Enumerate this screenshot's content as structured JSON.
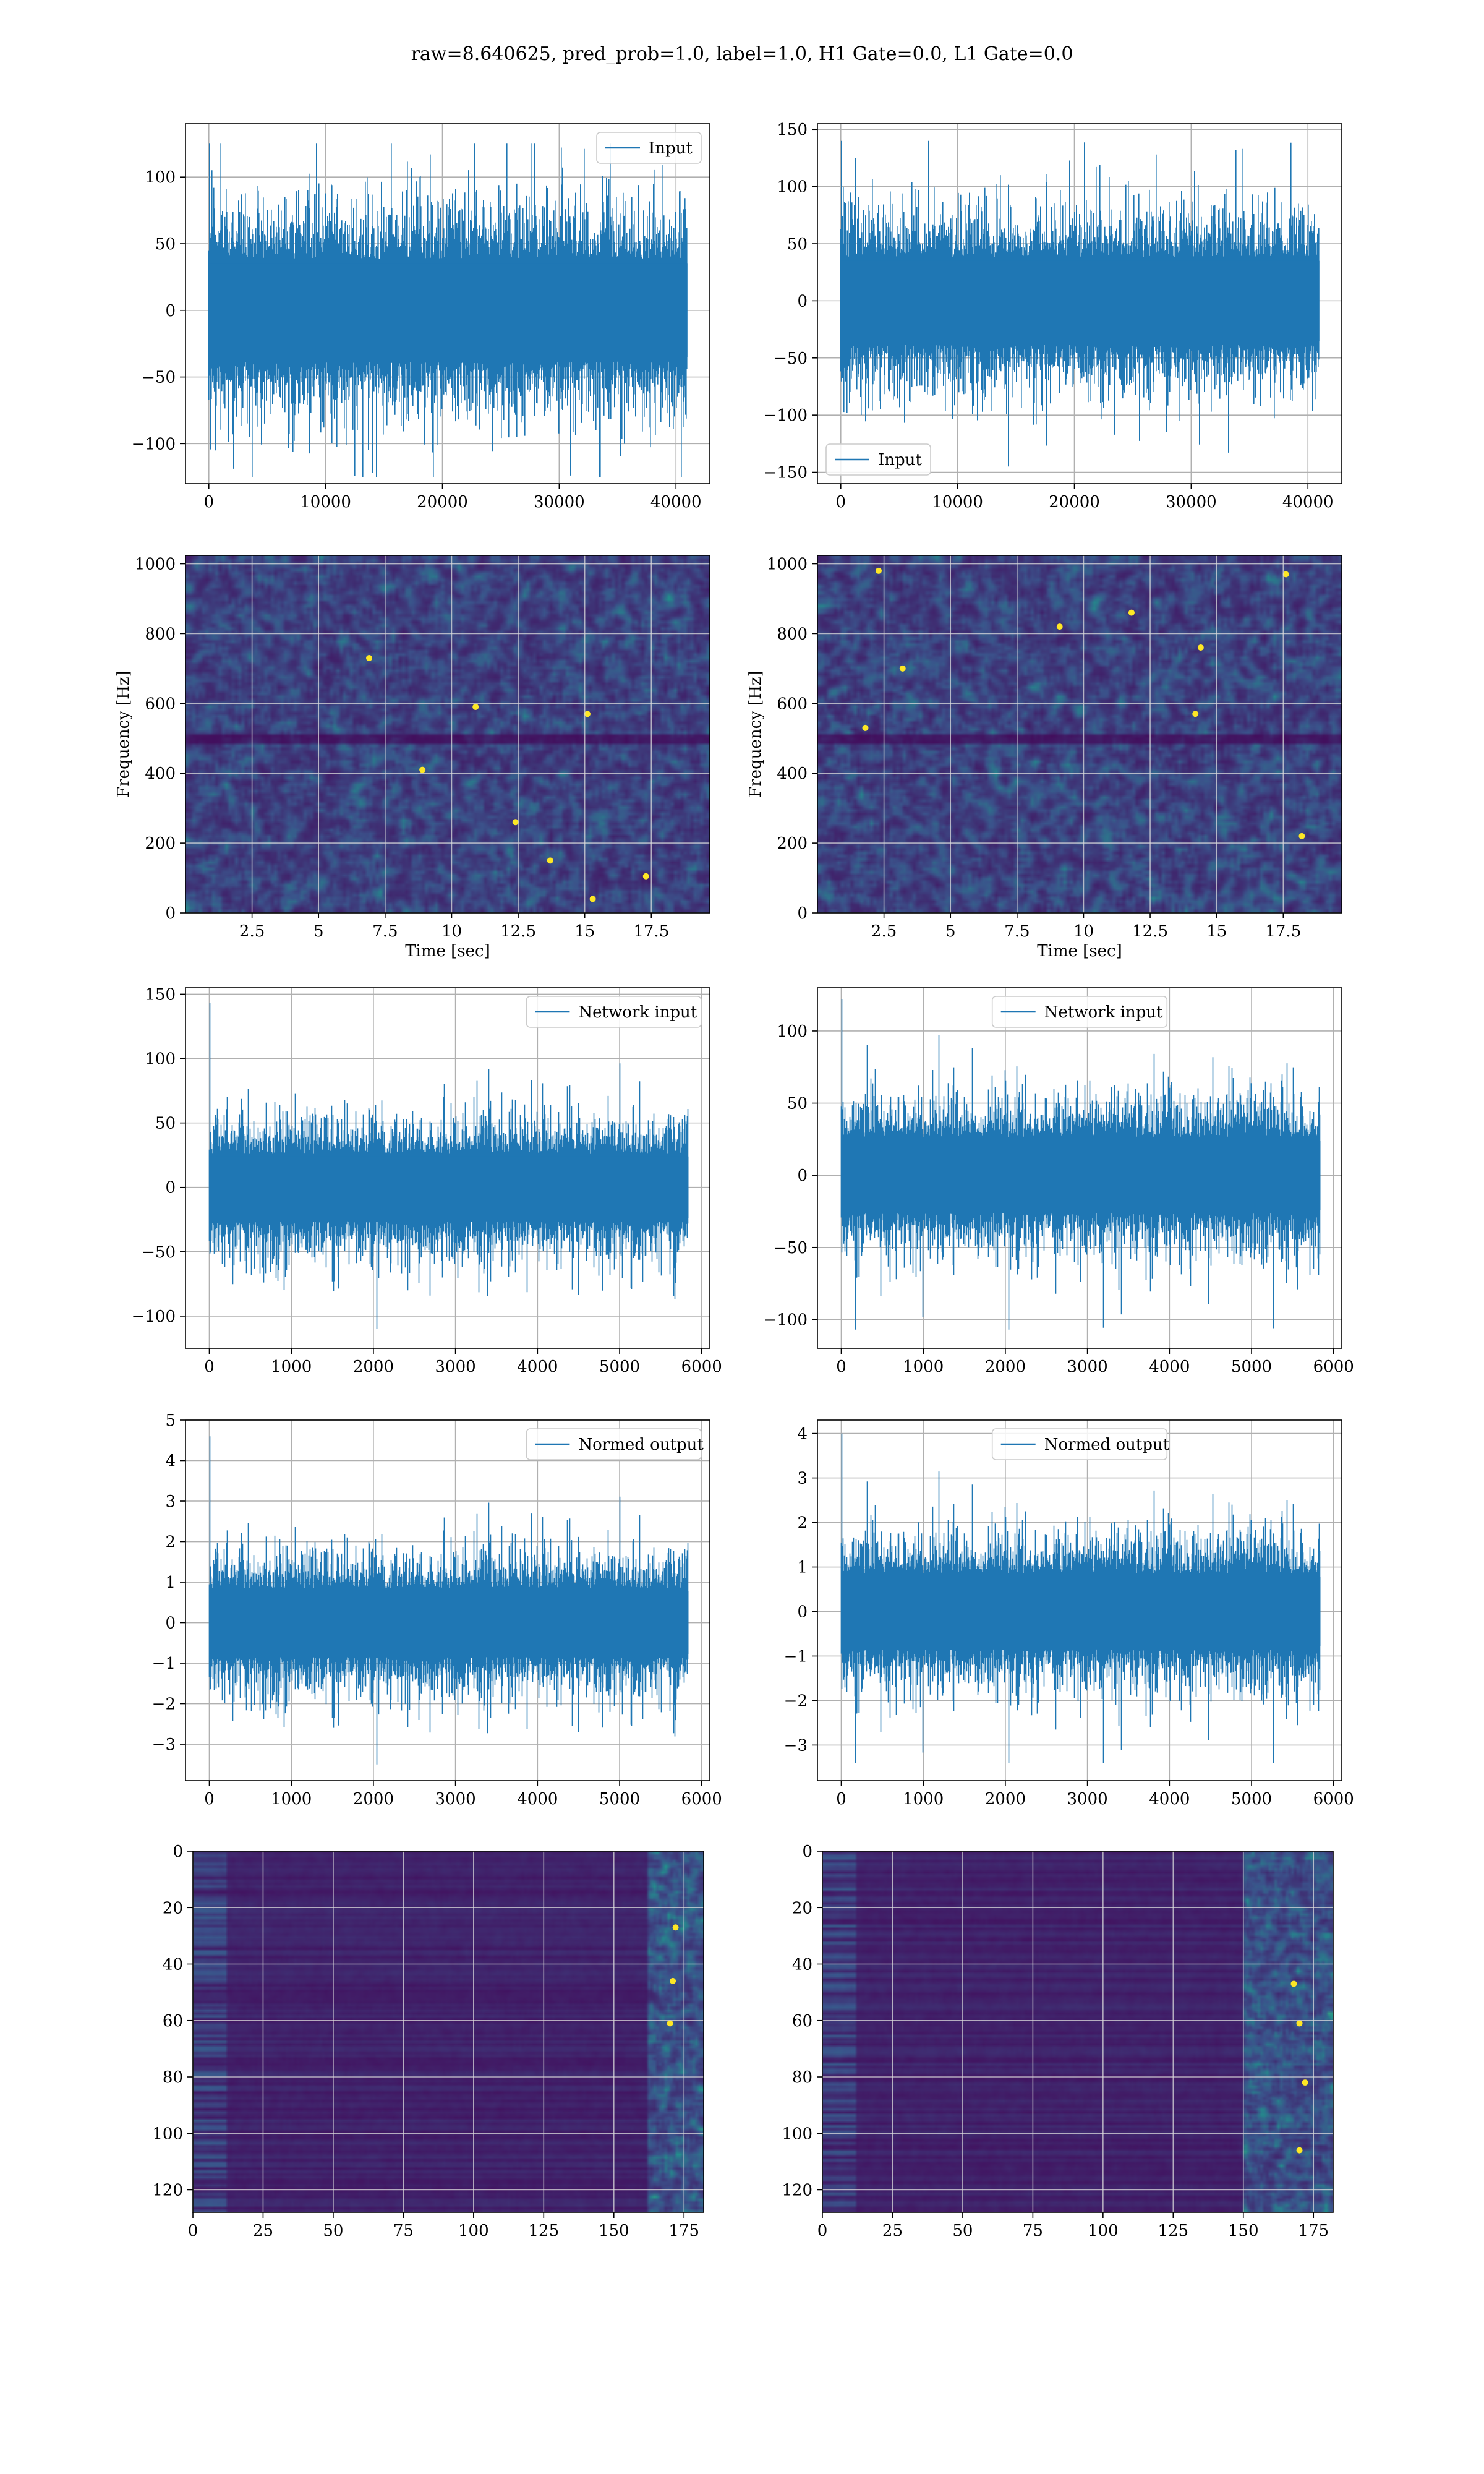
{
  "title": "raw=8.640625, pred_prob=1.0, label=1.0, H1 Gate=0.0, L1 Gate=0.0",
  "colors": {
    "line": "#1f77b4",
    "grid": "#b0b0b0",
    "viridis_low": "#440154",
    "viridis_mid": "#21918c",
    "viridis_high": "#fde725"
  },
  "chart_data": [
    {
      "id": "input-h1",
      "type": "line",
      "row": 0,
      "col": 0,
      "legend": "Input",
      "legend_loc": "upper right",
      "xlim": [
        -2000,
        42900
      ],
      "ylim": [
        -130,
        140
      ],
      "xticks": [
        0,
        10000,
        20000,
        30000,
        40000
      ],
      "yticks": [
        -100,
        -50,
        0,
        50,
        100
      ],
      "n_points": 40960,
      "band": 70,
      "spike_max": 125,
      "spike_min": -125,
      "seed": 11
    },
    {
      "id": "input-l1",
      "type": "line",
      "row": 0,
      "col": 1,
      "legend": "Input",
      "legend_loc": "lower left",
      "xlim": [
        -2000,
        42900
      ],
      "ylim": [
        -160,
        155
      ],
      "xticks": [
        0,
        10000,
        20000,
        30000,
        40000
      ],
      "yticks": [
        -150,
        -100,
        -50,
        0,
        50,
        100,
        150
      ],
      "n_points": 40960,
      "band": 70,
      "spike_max": 140,
      "spike_min": -145,
      "seed": 23
    },
    {
      "id": "spec-h1",
      "type": "heatmap",
      "row": 1,
      "col": 0,
      "xlabel": "Time [sec]",
      "ylabel": "Frequency [Hz]",
      "xlim": [
        0,
        19.7
      ],
      "ylim": [
        0,
        1024
      ],
      "xticks": [
        2.5,
        5.0,
        7.5,
        10.0,
        12.5,
        15.0,
        17.5
      ],
      "yticks": [
        0,
        200,
        400,
        600,
        800,
        1000
      ],
      "bright_spots": [
        [
          8.9,
          410
        ],
        [
          12.4,
          260
        ],
        [
          13.7,
          150
        ],
        [
          15.1,
          570
        ],
        [
          15.3,
          40
        ],
        [
          6.9,
          730
        ],
        [
          17.3,
          105
        ],
        [
          10.9,
          590
        ]
      ],
      "dark_band_hz": [
        480,
        510
      ],
      "seed": 31
    },
    {
      "id": "spec-l1",
      "type": "heatmap",
      "row": 1,
      "col": 1,
      "xlabel": "Time [sec]",
      "ylabel": "Frequency [Hz]",
      "xlim": [
        0,
        19.7
      ],
      "ylim": [
        0,
        1024
      ],
      "xticks": [
        2.5,
        5.0,
        7.5,
        10.0,
        12.5,
        15.0,
        17.5
      ],
      "yticks": [
        0,
        200,
        400,
        600,
        800,
        1000
      ],
      "bright_spots": [
        [
          1.8,
          530
        ],
        [
          3.2,
          700
        ],
        [
          9.1,
          820
        ],
        [
          11.8,
          860
        ],
        [
          14.4,
          760
        ],
        [
          14.2,
          570
        ],
        [
          18.2,
          220
        ],
        [
          17.6,
          970
        ],
        [
          2.3,
          980
        ]
      ],
      "dark_band_hz": [
        480,
        510
      ],
      "seed": 47
    },
    {
      "id": "network-input-h1",
      "type": "line",
      "row": 2,
      "col": 0,
      "legend": "Network input",
      "legend_loc": "upper right",
      "xlim": [
        -290,
        6100
      ],
      "ylim": [
        -125,
        155
      ],
      "xticks": [
        0,
        1000,
        2000,
        3000,
        4000,
        5000,
        6000
      ],
      "yticks": [
        -100,
        -50,
        0,
        50,
        100,
        150
      ],
      "n_points": 5840,
      "band": 48,
      "spike_max": 143,
      "spike_min": -110,
      "seed": 5
    },
    {
      "id": "network-input-l1",
      "type": "line",
      "row": 2,
      "col": 1,
      "legend": "Network input",
      "legend_loc": "upper center",
      "xlim": [
        -290,
        6100
      ],
      "ylim": [
        -120,
        130
      ],
      "xticks": [
        0,
        1000,
        2000,
        3000,
        4000,
        5000,
        6000
      ],
      "yticks": [
        -100,
        -50,
        0,
        50,
        100
      ],
      "n_points": 5840,
      "band": 48,
      "spike_max": 122,
      "spike_min": -107,
      "seed": 9
    },
    {
      "id": "normed-output-h1",
      "type": "line",
      "row": 3,
      "col": 0,
      "legend": "Normed output",
      "legend_loc": "upper right",
      "xlim": [
        -290,
        6100
      ],
      "ylim": [
        -3.9,
        5.0
      ],
      "xticks": [
        0,
        1000,
        2000,
        3000,
        4000,
        5000,
        6000
      ],
      "yticks": [
        -3,
        -2,
        -1,
        0,
        1,
        2,
        3,
        4,
        5
      ],
      "n_points": 5840,
      "band": 1.55,
      "spike_max": 4.6,
      "spike_min": -3.5,
      "seed": 5
    },
    {
      "id": "normed-output-l1",
      "type": "line",
      "row": 3,
      "col": 1,
      "legend": "Normed output",
      "legend_loc": "upper center",
      "xlim": [
        -290,
        6100
      ],
      "ylim": [
        -3.8,
        4.3
      ],
      "xticks": [
        0,
        1000,
        2000,
        3000,
        4000,
        5000,
        6000
      ],
      "yticks": [
        -3,
        -2,
        -1,
        0,
        1,
        2,
        3,
        4
      ],
      "n_points": 5840,
      "band": 1.55,
      "spike_max": 4.0,
      "spike_min": -3.4,
      "seed": 9
    },
    {
      "id": "feature-map-h1",
      "type": "heatmap",
      "row": 4,
      "col": 0,
      "xlim": [
        0,
        182
      ],
      "ylim": [
        0,
        128
      ],
      "y_inverted": true,
      "xticks": [
        0,
        25,
        50,
        75,
        100,
        125,
        150,
        175
      ],
      "yticks": [
        0,
        20,
        40,
        60,
        80,
        100,
        120
      ],
      "bright_cols": [
        162,
        182
      ],
      "bright_spots": [
        [
          170,
          61
        ],
        [
          171,
          46
        ],
        [
          172,
          27
        ]
      ],
      "seed": 61
    },
    {
      "id": "feature-map-l1",
      "type": "heatmap",
      "row": 4,
      "col": 1,
      "xlim": [
        0,
        182
      ],
      "ylim": [
        0,
        128
      ],
      "y_inverted": true,
      "xticks": [
        0,
        25,
        50,
        75,
        100,
        125,
        150,
        175
      ],
      "yticks": [
        0,
        20,
        40,
        60,
        80,
        100,
        120
      ],
      "bright_cols": [
        150,
        182
      ],
      "bright_spots": [
        [
          170,
          61
        ],
        [
          168,
          47
        ],
        [
          172,
          82
        ],
        [
          170,
          106
        ]
      ],
      "seed": 73
    }
  ]
}
